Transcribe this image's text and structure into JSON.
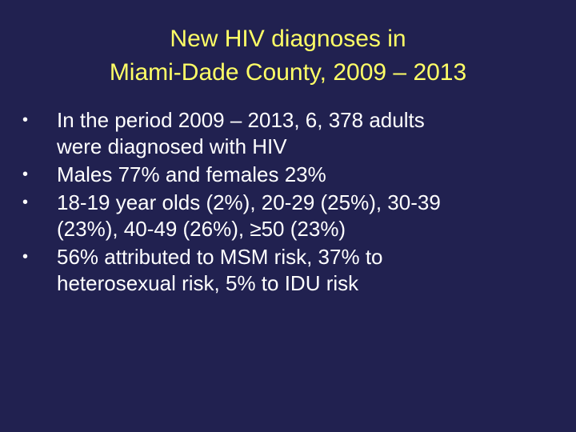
{
  "slide": {
    "title_lines": [
      "New HIV diagnoses in",
      "Miami-Dade County, 2009 – 2013"
    ],
    "bullet_glyph": "•",
    "bullets": [
      {
        "lines": [
          "In the period 2009 – 2013, 6, 378 adults",
          "were diagnosed with HIV"
        ]
      },
      {
        "lines": [
          "Males 77% and females 23%"
        ]
      },
      {
        "lines": [
          "18-19 year olds (2%), 20-29 (25%), 30-39",
          "(23%), 40-49 (26%), ≥50 (23%)"
        ]
      },
      {
        "lines": [
          "56% attributed to MSM risk, 37% to",
          "heterosexual risk, 5% to IDU risk"
        ]
      }
    ],
    "colors": {
      "background": "#212150",
      "title": "#FFFF66",
      "body_text": "#FFFFFF"
    }
  }
}
